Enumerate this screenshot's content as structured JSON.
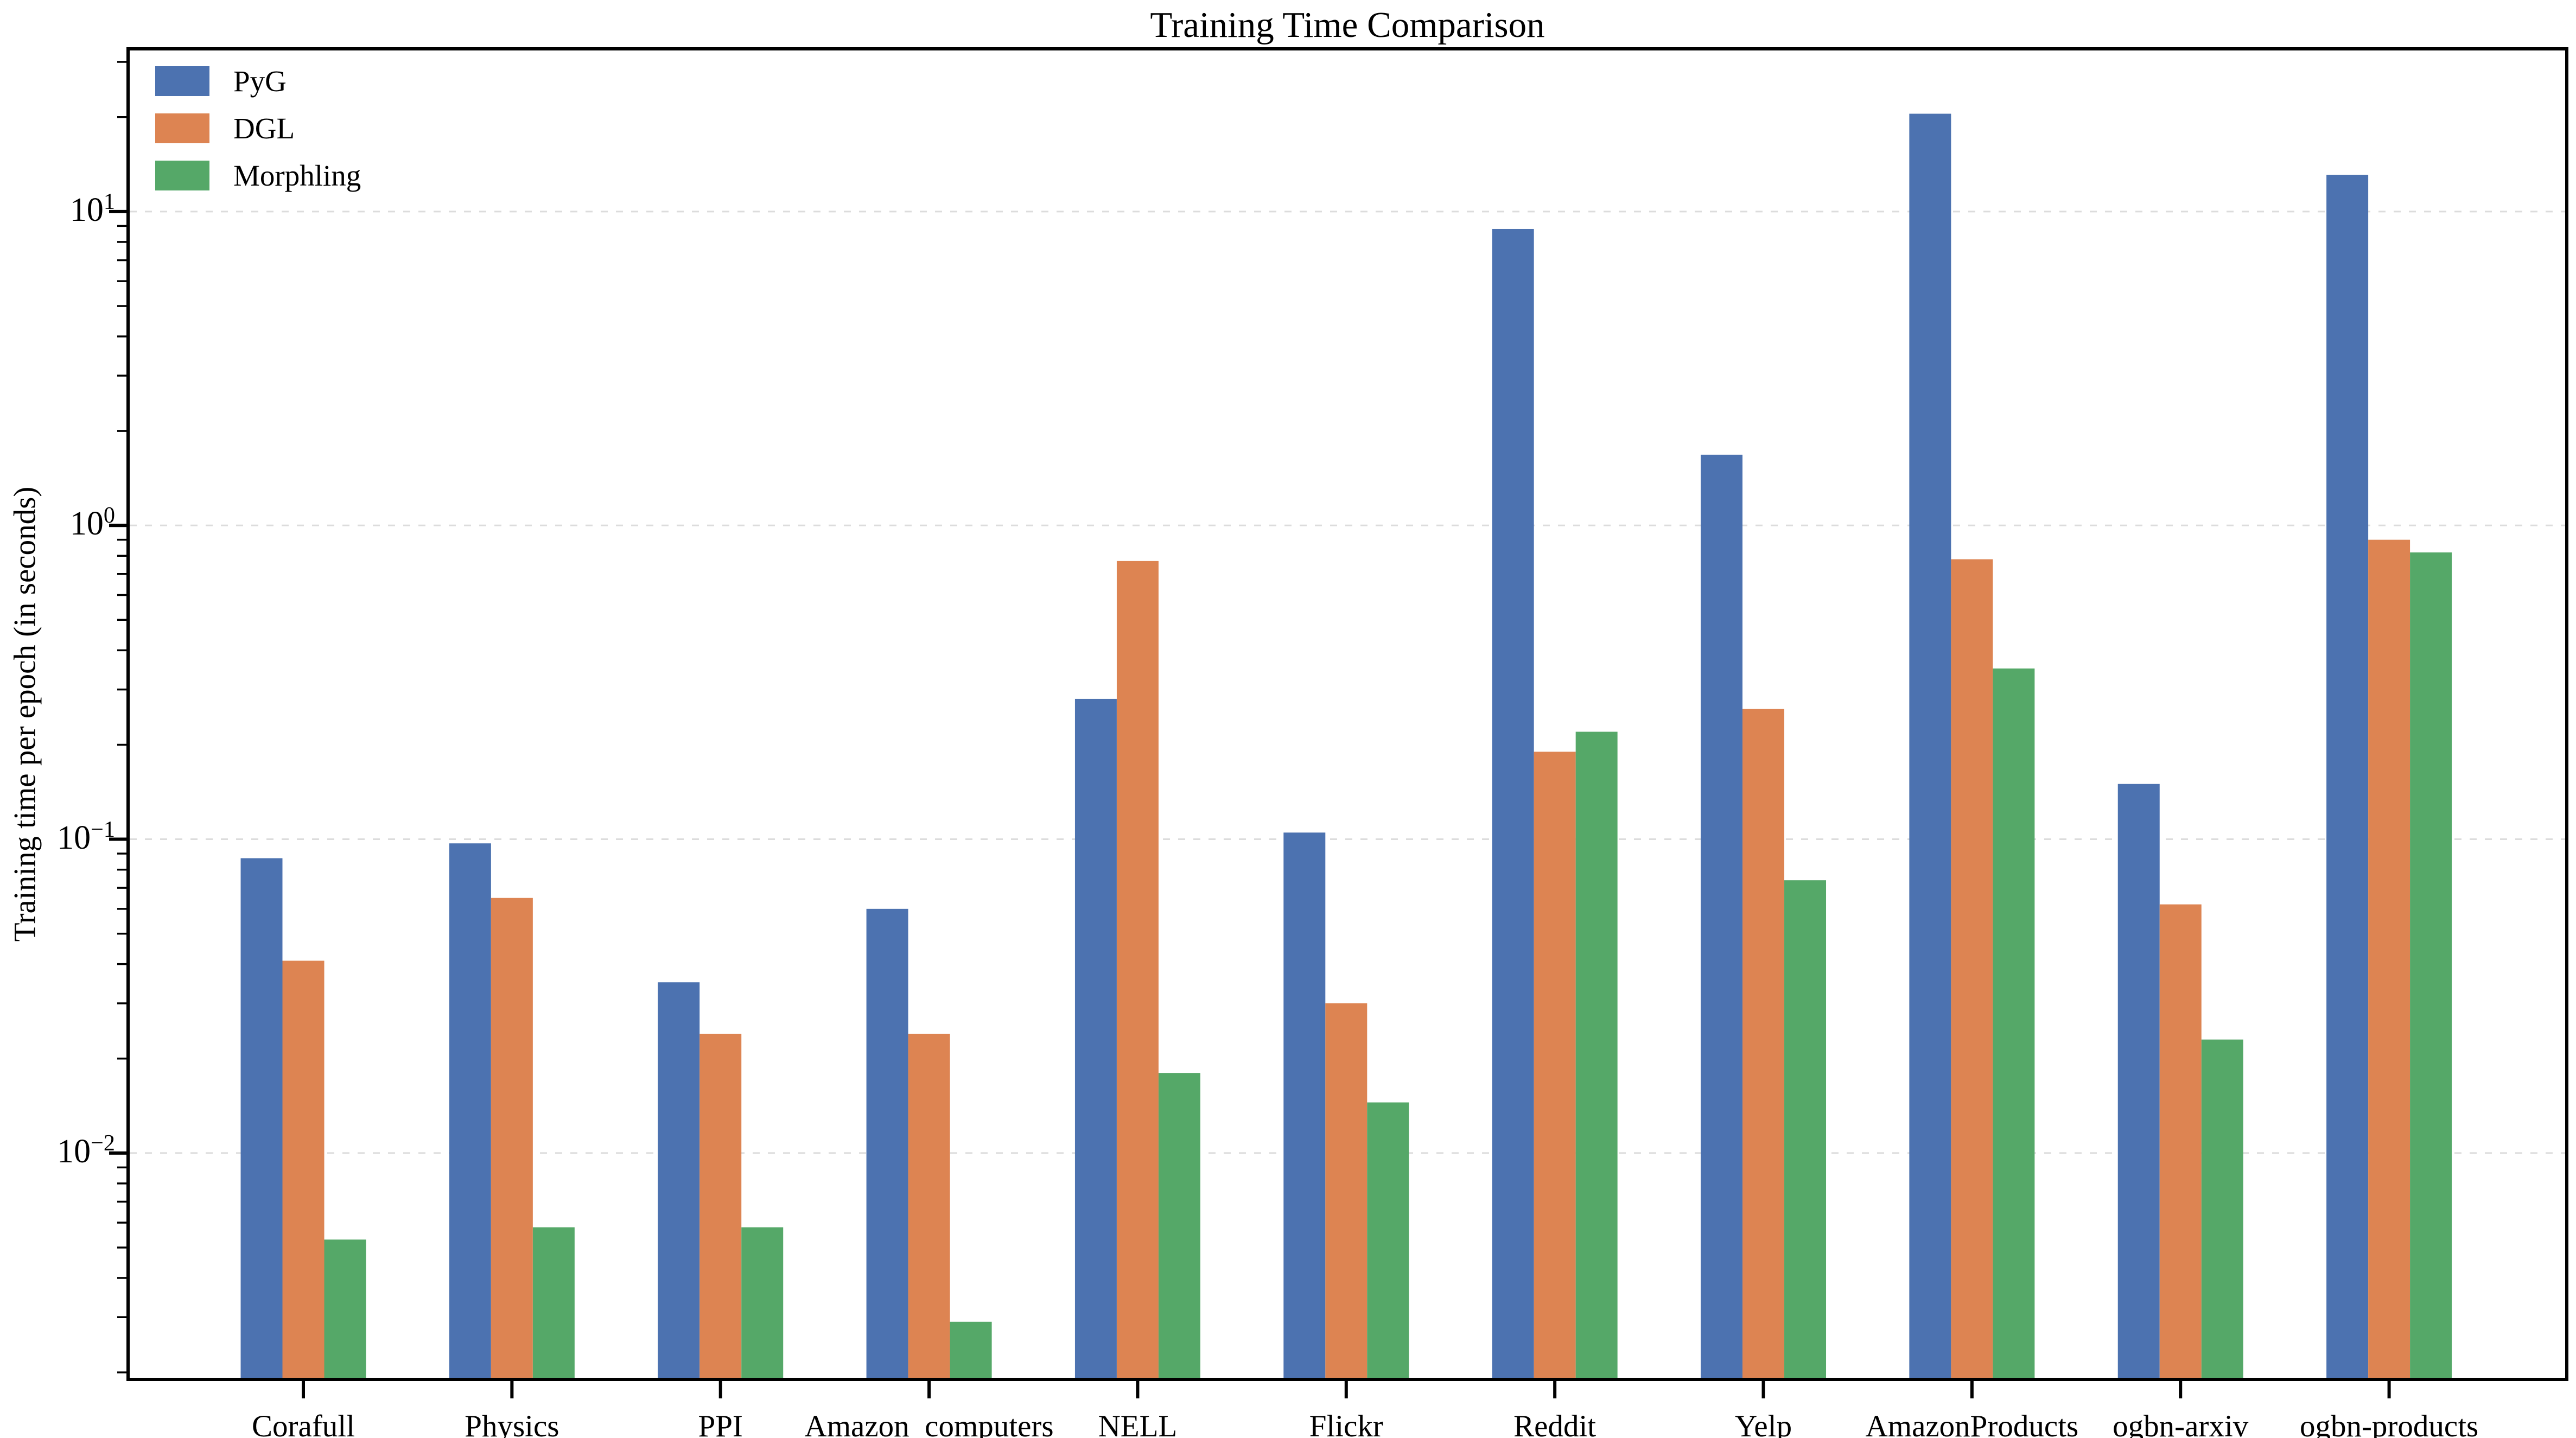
{
  "chart_data": {
    "type": "bar",
    "title": "Training Time Comparison",
    "ylabel": "Training time per epoch (in seconds)",
    "xlabel": "",
    "y_scale": "log",
    "ylim": [
      0.0019,
      33
    ],
    "y_major_tick_exponents": [
      1,
      0,
      -1,
      -2
    ],
    "grid": "horizontal dashed gridlines at major log ticks",
    "grid_color": "#dcdcdc",
    "legend_position": "upper left",
    "legend_entries": [
      "PyG",
      "DGL",
      "Morphling"
    ],
    "categories": [
      "Corafull",
      "Physics",
      "PPI",
      "Amazon_computers",
      "NELL",
      "Flickr",
      "Reddit",
      "Yelp",
      "AmazonProducts",
      "ogbn-arxiv",
      "ogbn-products"
    ],
    "series": [
      {
        "name": "PyG",
        "color": "#4C72B0",
        "values": [
          0.087,
          0.097,
          0.035,
          0.06,
          0.28,
          0.105,
          8.8,
          1.68,
          20.5,
          0.15,
          13.1
        ]
      },
      {
        "name": "DGL",
        "color": "#DD8452",
        "values": [
          0.041,
          0.065,
          0.024,
          0.024,
          0.77,
          0.03,
          0.19,
          0.26,
          0.78,
          0.062,
          0.9
        ]
      },
      {
        "name": "Morphling",
        "color": "#55A868",
        "values": [
          0.0053,
          0.0058,
          0.0058,
          0.0029,
          0.018,
          0.0145,
          0.22,
          0.074,
          0.35,
          0.023,
          0.82
        ]
      }
    ]
  }
}
